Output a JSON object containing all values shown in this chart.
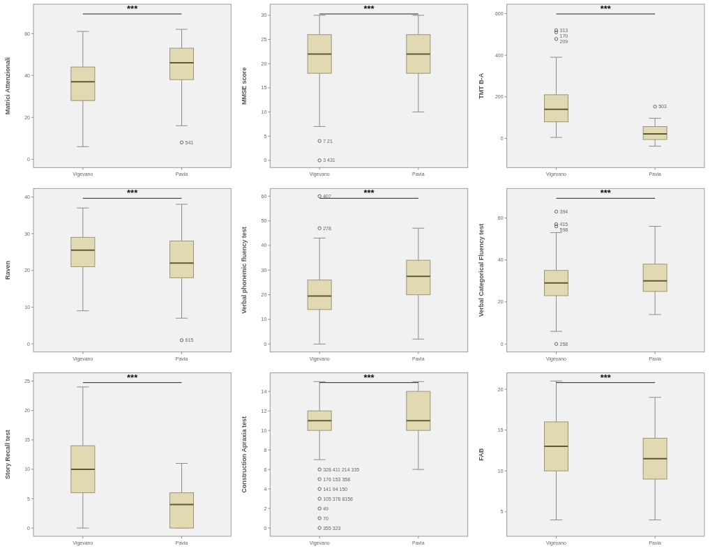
{
  "chart_data": [
    {
      "type": "box",
      "ylabel": "Matrici Attenzionali",
      "categories": [
        "Vigevano",
        "Pavia"
      ],
      "ylim": [
        -4,
        74
      ],
      "yticks": [
        0,
        20,
        40,
        60
      ],
      "grid": false,
      "series": [
        {
          "color": "#e0d9b2",
          "boxes": [
            {
              "low": 6,
              "q1": 28,
              "median": 37,
              "q3": 44,
              "high": 61
            },
            {
              "low": 16,
              "q1": 38,
              "median": 46,
              "q3": 53,
              "high": 62,
              "outliers": [
                8
              ]
            }
          ]
        }
      ],
      "annotations": [
        "***",
        "541"
      ]
    },
    {
      "type": "box",
      "ylabel": "MMSE score",
      "categories": [
        "Vigevano",
        "Pavia"
      ],
      "ylim": [
        -1.5,
        32.3
      ],
      "yticks": [
        0,
        5,
        10,
        15,
        20,
        25,
        30
      ],
      "grid": false,
      "series": [
        {
          "color": "#e0d9b2",
          "boxes": [
            {
              "low": 7,
              "q1": 18,
              "median": 22,
              "q3": 26,
              "high": 30,
              "outliers": [
                4,
                0
              ]
            },
            {
              "low": 10,
              "q1": 18,
              "median": 22,
              "q3": 26,
              "high": 30
            }
          ]
        }
      ],
      "annotations": [
        "***",
        "7 21",
        "3 431"
      ]
    },
    {
      "type": "box",
      "ylabel": "TMT B-A",
      "categories": [
        "Vigevano",
        "Pavia"
      ],
      "ylim": [
        -140,
        645
      ],
      "yticks": [
        0,
        200,
        400,
        600
      ],
      "grid": false,
      "series": [
        {
          "color": "#e0d9b2",
          "boxes": [
            {
              "low": 5,
              "q1": 80,
              "median": 140,
              "q3": 210,
              "high": 390,
              "outliers": [
                520,
                510,
                478
              ]
            },
            {
              "low": -37,
              "q1": -5,
              "median": 22,
              "q3": 57,
              "high": 97,
              "outliers": [
                153
              ]
            }
          ]
        }
      ],
      "annotations": [
        "***",
        "313",
        "170",
        "209",
        "503"
      ]
    },
    {
      "type": "box",
      "ylabel": "Raven",
      "categories": [
        "Vigevano",
        "Pavia"
      ],
      "ylim": [
        -2.2,
        42.3
      ],
      "yticks": [
        0,
        10,
        20,
        30,
        40
      ],
      "grid": false,
      "series": [
        {
          "color": "#e0d9b2",
          "boxes": [
            {
              "low": 9,
              "q1": 21,
              "median": 25.5,
              "q3": 29,
              "high": 37
            },
            {
              "low": 7,
              "q1": 18,
              "median": 22,
              "q3": 28,
              "high": 38,
              "outliers": [
                1
              ]
            }
          ]
        }
      ],
      "annotations": [
        "***",
        "615"
      ]
    },
    {
      "type": "box",
      "ylabel": "Verbal phonemic fluency test",
      "categories": [
        "Vigevano",
        "Pavia"
      ],
      "ylim": [
        -3.2,
        63.1
      ],
      "yticks": [
        0,
        10,
        20,
        30,
        40,
        50,
        60
      ],
      "grid": false,
      "series": [
        {
          "color": "#e0d9b2",
          "boxes": [
            {
              "low": 0,
              "q1": 14,
              "median": 19.5,
              "q3": 26,
              "high": 43,
              "outliers": [
                60,
                47
              ]
            },
            {
              "low": 2,
              "q1": 20,
              "median": 27.5,
              "q3": 34,
              "high": 47
            }
          ]
        }
      ],
      "annotations": [
        "***",
        "407",
        "278"
      ]
    },
    {
      "type": "box",
      "ylabel": "Verbal Categorical Fluency test",
      "categories": [
        "Vigevano",
        "Pavia"
      ],
      "ylim": [
        -3.8,
        74
      ],
      "yticks": [
        0,
        20,
        40,
        60
      ],
      "grid": false,
      "series": [
        {
          "color": "#e0d9b2",
          "boxes": [
            {
              "low": 6,
              "q1": 23,
              "median": 29,
              "q3": 35,
              "high": 53,
              "outliers": [
                63,
                57,
                56,
                0
              ]
            },
            {
              "low": 14,
              "q1": 25,
              "median": 30,
              "q3": 38,
              "high": 56
            }
          ]
        }
      ],
      "annotations": [
        "***",
        "394",
        "415",
        "598",
        "258"
      ]
    },
    {
      "type": "box",
      "ylabel": "Story Recall test",
      "categories": [
        "Vigevano",
        "Pavia"
      ],
      "ylim": [
        -1.4,
        26.4
      ],
      "yticks": [
        0,
        5,
        10,
        15,
        20,
        25
      ],
      "grid": false,
      "series": [
        {
          "color": "#e0d9b2",
          "boxes": [
            {
              "low": 0,
              "q1": 6,
              "median": 10,
              "q3": 14,
              "high": 24
            },
            {
              "low": 0,
              "q1": 0,
              "median": 4,
              "q3": 6,
              "high": 11
            }
          ]
        }
      ],
      "annotations": [
        "***"
      ]
    },
    {
      "type": "box",
      "ylabel": "Construction Apraxia test",
      "categories": [
        "Vigevano",
        "Pavia"
      ],
      "ylim": [
        -0.85,
        15.9
      ],
      "yticks": [
        0,
        2,
        4,
        6,
        8,
        10,
        12,
        14
      ],
      "grid": false,
      "series": [
        {
          "color": "#e0d9b2",
          "boxes": [
            {
              "low": 7,
              "q1": 10,
              "median": 11,
              "q3": 12,
              "high": 15,
              "outliers": [
                6,
                5,
                4,
                3,
                2,
                1,
                0
              ]
            },
            {
              "low": 6,
              "q1": 10,
              "median": 11,
              "q3": 14,
              "high": 15
            }
          ]
        }
      ],
      "annotations": [
        "***",
        "328 411 214 335",
        "176 153 358",
        "141 94 150",
        "105 376 8156",
        "49",
        "70",
        "355 323"
      ]
    },
    {
      "type": "box",
      "ylabel": "FAB",
      "categories": [
        "Vigevano",
        "Pavia"
      ],
      "ylim": [
        2,
        22
      ],
      "yticks": [
        5,
        10,
        15,
        20
      ],
      "grid": false,
      "series": [
        {
          "color": "#e0d9b2",
          "boxes": [
            {
              "low": 4,
              "q1": 10,
              "median": 13,
              "q3": 16,
              "high": 21
            },
            {
              "low": 4,
              "q1": 9,
              "median": 11.5,
              "q3": 14,
              "high": 19
            }
          ]
        }
      ],
      "annotations": [
        "***"
      ]
    }
  ]
}
